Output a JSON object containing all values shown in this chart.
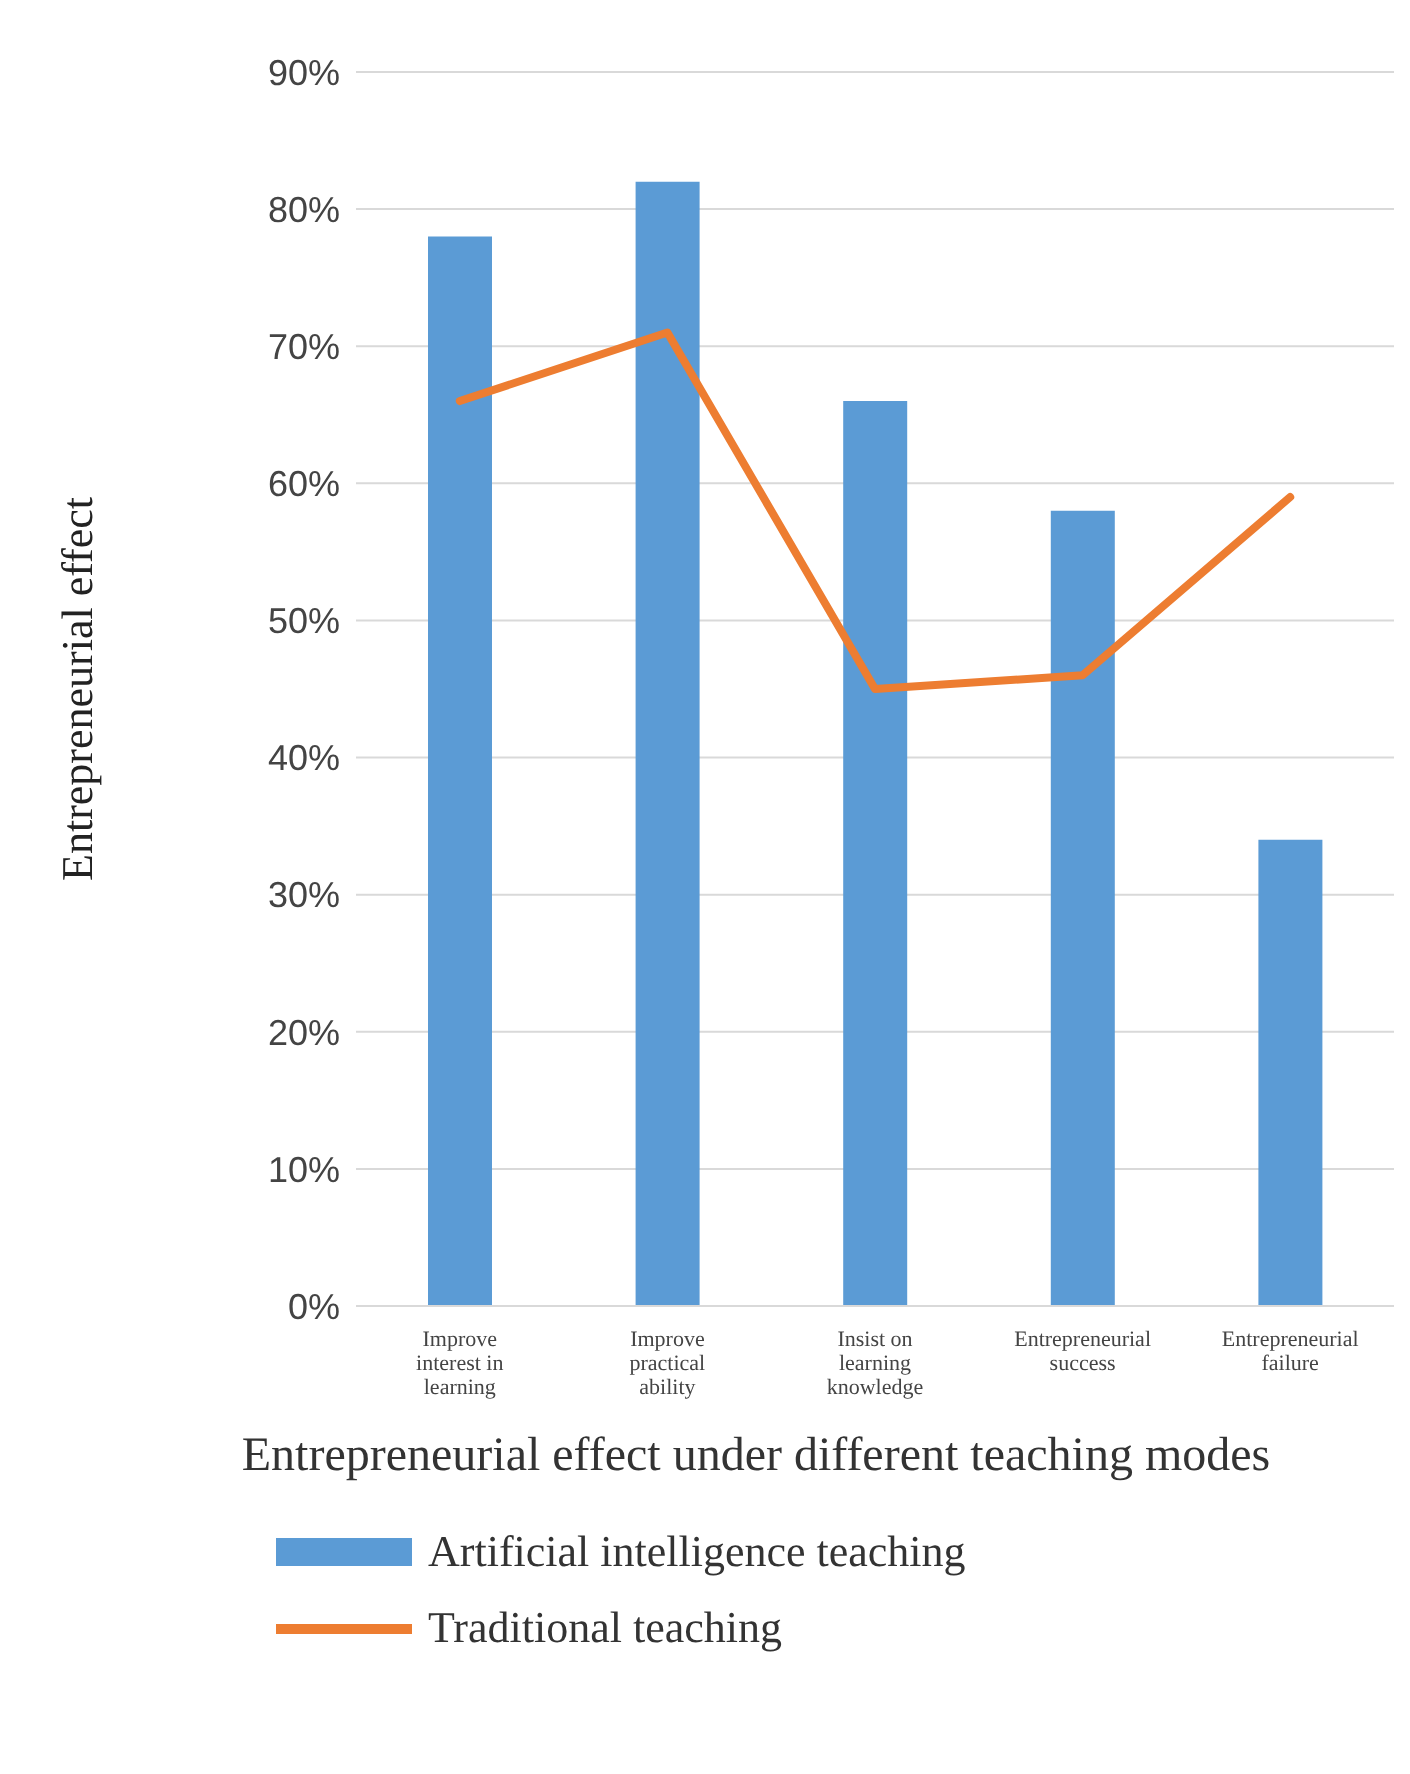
{
  "chart_data": {
    "type": "bar",
    "xlabel": "Entrepreneurial effect under different teaching modes",
    "ylabel": "Entrepreneurial effect",
    "categories": [
      "Improve interest in learning",
      "Improve practical ability",
      "Insist on learning knowledge",
      "Entrepreneurial success",
      "Entrepreneurial failure"
    ],
    "series": [
      {
        "name": "Artificial intelligence teaching",
        "color": "#5b9bd5",
        "values": [
          78,
          82,
          66,
          58,
          34
        ]
      },
      {
        "name": "Traditional teaching",
        "type": "line",
        "color": "#ed7d31",
        "values": [
          66,
          71,
          45,
          46,
          59
        ]
      }
    ],
    "ylim": [
      0,
      90
    ],
    "yticks": [
      {
        "value": 0,
        "label": "0%"
      },
      {
        "value": 10,
        "label": "10%"
      },
      {
        "value": 20,
        "label": "20%"
      },
      {
        "value": 30,
        "label": "30%"
      },
      {
        "value": 40,
        "label": "40%"
      },
      {
        "value": 50,
        "label": "50%"
      },
      {
        "value": 60,
        "label": "60%"
      },
      {
        "value": 70,
        "label": "70%"
      },
      {
        "value": 80,
        "label": "80%"
      },
      {
        "value": 90,
        "label": "90%"
      }
    ],
    "grid": "y",
    "legend": "bottom",
    "marker": "none"
  }
}
